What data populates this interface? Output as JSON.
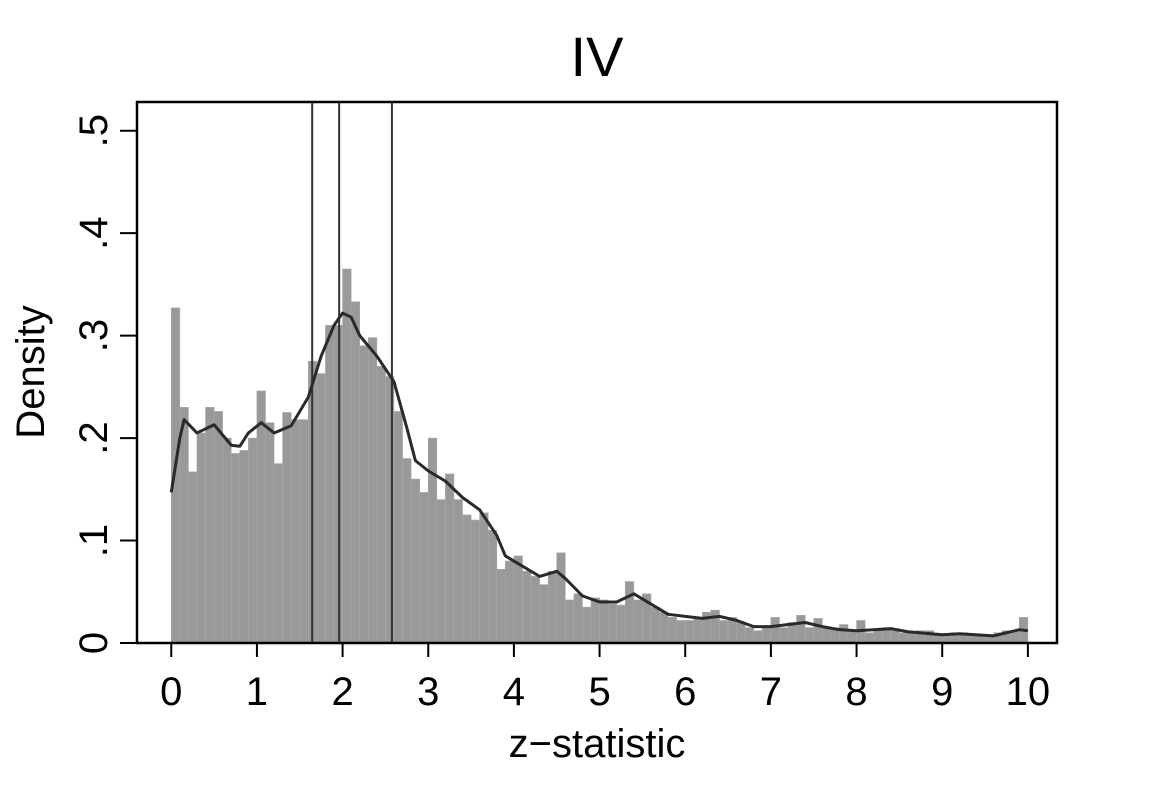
{
  "chart_data": {
    "type": "histogram",
    "title": "IV",
    "xlabel": "z−statistic",
    "ylabel": "Density",
    "bins": [
      0,
      0.1,
      0.2,
      0.3,
      0.4,
      0.5,
      0.6,
      0.7,
      0.8,
      0.9,
      1,
      1.1,
      1.2,
      1.3,
      1.4,
      1.5,
      1.6,
      1.7,
      1.8,
      1.9,
      2,
      2.1,
      2.2,
      2.3,
      2.4,
      2.5,
      2.6,
      2.7,
      2.8,
      2.9,
      3,
      3.1,
      3.2,
      3.3,
      3.4,
      3.5,
      3.6,
      3.7,
      3.8,
      3.9,
      4,
      4.1,
      4.2,
      4.3,
      4.4,
      4.5,
      4.6,
      4.7,
      4.8,
      4.9,
      5,
      5.1,
      5.2,
      5.3,
      5.4,
      5.5,
      5.6,
      5.7,
      5.8,
      5.9,
      6,
      6.1,
      6.2,
      6.3,
      6.4,
      6.5,
      6.6,
      6.7,
      6.8,
      6.9,
      7,
      7.1,
      7.2,
      7.3,
      7.4,
      7.5,
      7.6,
      7.7,
      7.8,
      7.9,
      8,
      8.1,
      8.2,
      8.3,
      8.4,
      8.5,
      8.6,
      8.7,
      8.8,
      8.9,
      9,
      9.1,
      9.2,
      9.3,
      9.4,
      9.5,
      9.6,
      9.7,
      9.8,
      9.9,
      10
    ],
    "values": [
      0.327,
      0.23,
      0.167,
      0.205,
      0.23,
      0.226,
      0.2,
      0.185,
      0.188,
      0.2,
      0.246,
      0.215,
      0.175,
      0.225,
      0.218,
      0.218,
      0.275,
      0.263,
      0.31,
      0.31,
      0.365,
      0.333,
      0.29,
      0.298,
      0.27,
      0.26,
      0.226,
      0.18,
      0.16,
      0.147,
      0.2,
      0.14,
      0.165,
      0.14,
      0.125,
      0.12,
      0.127,
      0.11,
      0.072,
      0.08,
      0.085,
      0.07,
      0.065,
      0.057,
      0.07,
      0.088,
      0.042,
      0.048,
      0.035,
      0.044,
      0.042,
      0.038,
      0.037,
      0.06,
      0.042,
      0.048,
      0.035,
      0.03,
      0.025,
      0.022,
      0.022,
      0.025,
      0.03,
      0.032,
      0.022,
      0.025,
      0.02,
      0.015,
      0.012,
      0.015,
      0.025,
      0.015,
      0.02,
      0.027,
      0.015,
      0.024,
      0.015,
      0.015,
      0.018,
      0.012,
      0.022,
      0.01,
      0.012,
      0.015,
      0.012,
      0.01,
      0.01,
      0.012,
      0.012,
      0.008,
      0.008,
      0.01,
      0.01,
      0.008,
      0.008,
      0.006,
      0.01,
      0.012,
      0.012,
      0.025
    ],
    "color": "#999999",
    "density": {
      "color": "#2a2a2a",
      "x": [
        0,
        0.1,
        0.15,
        0.3,
        0.5,
        0.7,
        0.8,
        0.9,
        1.05,
        1.2,
        1.4,
        1.6,
        1.75,
        1.9,
        2,
        2.1,
        2.2,
        2.4,
        2.6,
        2.75,
        2.85,
        3,
        3.2,
        3.4,
        3.6,
        3.8,
        3.9,
        4.1,
        4.3,
        4.5,
        4.6,
        4.8,
        5,
        5.2,
        5.4,
        5.6,
        5.8,
        6,
        6.2,
        6.4,
        6.6,
        6.8,
        7,
        7.4,
        7.6,
        7.8,
        8,
        8.4,
        8.6,
        9,
        9.2,
        9.6,
        9.9,
        10
      ],
      "y": [
        0.147,
        0.2,
        0.218,
        0.205,
        0.213,
        0.193,
        0.192,
        0.205,
        0.215,
        0.205,
        0.212,
        0.24,
        0.28,
        0.31,
        0.322,
        0.318,
        0.3,
        0.28,
        0.255,
        0.21,
        0.178,
        0.168,
        0.158,
        0.142,
        0.13,
        0.105,
        0.085,
        0.075,
        0.065,
        0.07,
        0.063,
        0.046,
        0.04,
        0.04,
        0.048,
        0.038,
        0.028,
        0.026,
        0.024,
        0.026,
        0.022,
        0.016,
        0.016,
        0.02,
        0.016,
        0.013,
        0.012,
        0.014,
        0.011,
        0.008,
        0.009,
        0.007,
        0.013,
        0.012
      ]
    },
    "vlines": [
      1.645,
      1.96,
      2.576
    ],
    "xlim": [
      -0.4,
      10.34
    ],
    "ylim": [
      0,
      0.528
    ],
    "xticks": [
      0,
      1,
      2,
      3,
      4,
      5,
      6,
      7,
      8,
      9,
      10
    ],
    "yticks": [
      0,
      {
        "value": 0.1,
        "label": ".1"
      },
      {
        "value": 0.2,
        "label": ".2"
      },
      {
        "value": 0.3,
        "label": ".3"
      },
      {
        "value": 0.4,
        "label": ".4"
      },
      {
        "value": 0.5,
        "label": ".5"
      }
    ]
  }
}
